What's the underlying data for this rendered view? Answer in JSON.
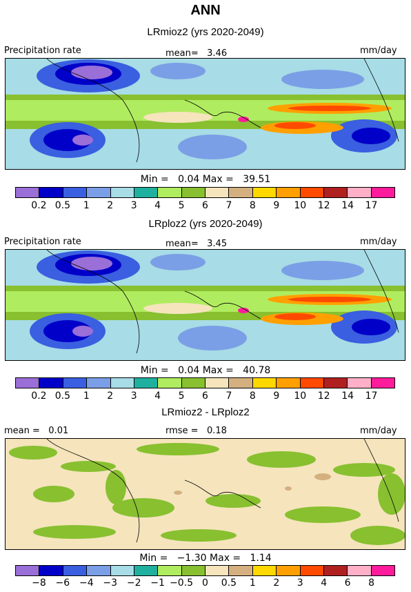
{
  "title": "ANN",
  "panels": [
    {
      "title": "LRmioz2 (yrs 2020-2049)",
      "left_label": "Precipitation rate",
      "mean_label": "mean=   3.46",
      "units": "mm/day",
      "stats": "Min =   0.04 Max =   39.51"
    },
    {
      "title": "LRploz2 (yrs 2020-2049)",
      "left_label": "Precipitation rate",
      "mean_label": "mean=   3.45",
      "units": "mm/day",
      "stats": "Min =   0.04 Max =   40.78"
    },
    {
      "title": "LRmioz2 - LRploz2",
      "left_label": "mean =   0.01",
      "mean_label": "rmse =   0.18",
      "units": "mm/day",
      "stats": "Min =   −1.30 Max =   1.14"
    }
  ],
  "colorbar_colors": [
    "#9a6fd8",
    "#0000c8",
    "#3a5fe0",
    "#7b9fe6",
    "#a8dce6",
    "#20b0a0",
    "#b0ec60",
    "#88c030",
    "#f5e4bc",
    "#d4b080",
    "#ffd800",
    "#ffa000",
    "#ff4a00",
    "#b02020",
    "#ffb0c8",
    "#ff1c9c"
  ],
  "precip_ticks": [
    "0.2",
    "0.5",
    "1",
    "2",
    "3",
    "4",
    "5",
    "6",
    "7",
    "8",
    "9",
    "10",
    "12",
    "14",
    "17"
  ],
  "diff_ticks": [
    "−8",
    "−6",
    "−4",
    "−3",
    "−2",
    "−1",
    "−0.5",
    "0",
    "0.5",
    "1",
    "2",
    "3",
    "4",
    "6",
    "8"
  ],
  "precip_palette": {
    "very_dry": "#9a6fd8",
    "dry": "#0000c8",
    "low": "#3a5fe0",
    "lowmid": "#7b9fe6",
    "mid": "#a8dce6",
    "teal": "#20b0a0",
    "lightgreen": "#b0ec60",
    "green": "#88c030",
    "tan": "#f5e4bc",
    "orange": "#ffa000",
    "red": "#ff4a00",
    "magenta": "#ff1c9c"
  },
  "diff_palette": {
    "background": "#f5e4bc",
    "green": "#88c030",
    "tan": "#d4b080"
  }
}
